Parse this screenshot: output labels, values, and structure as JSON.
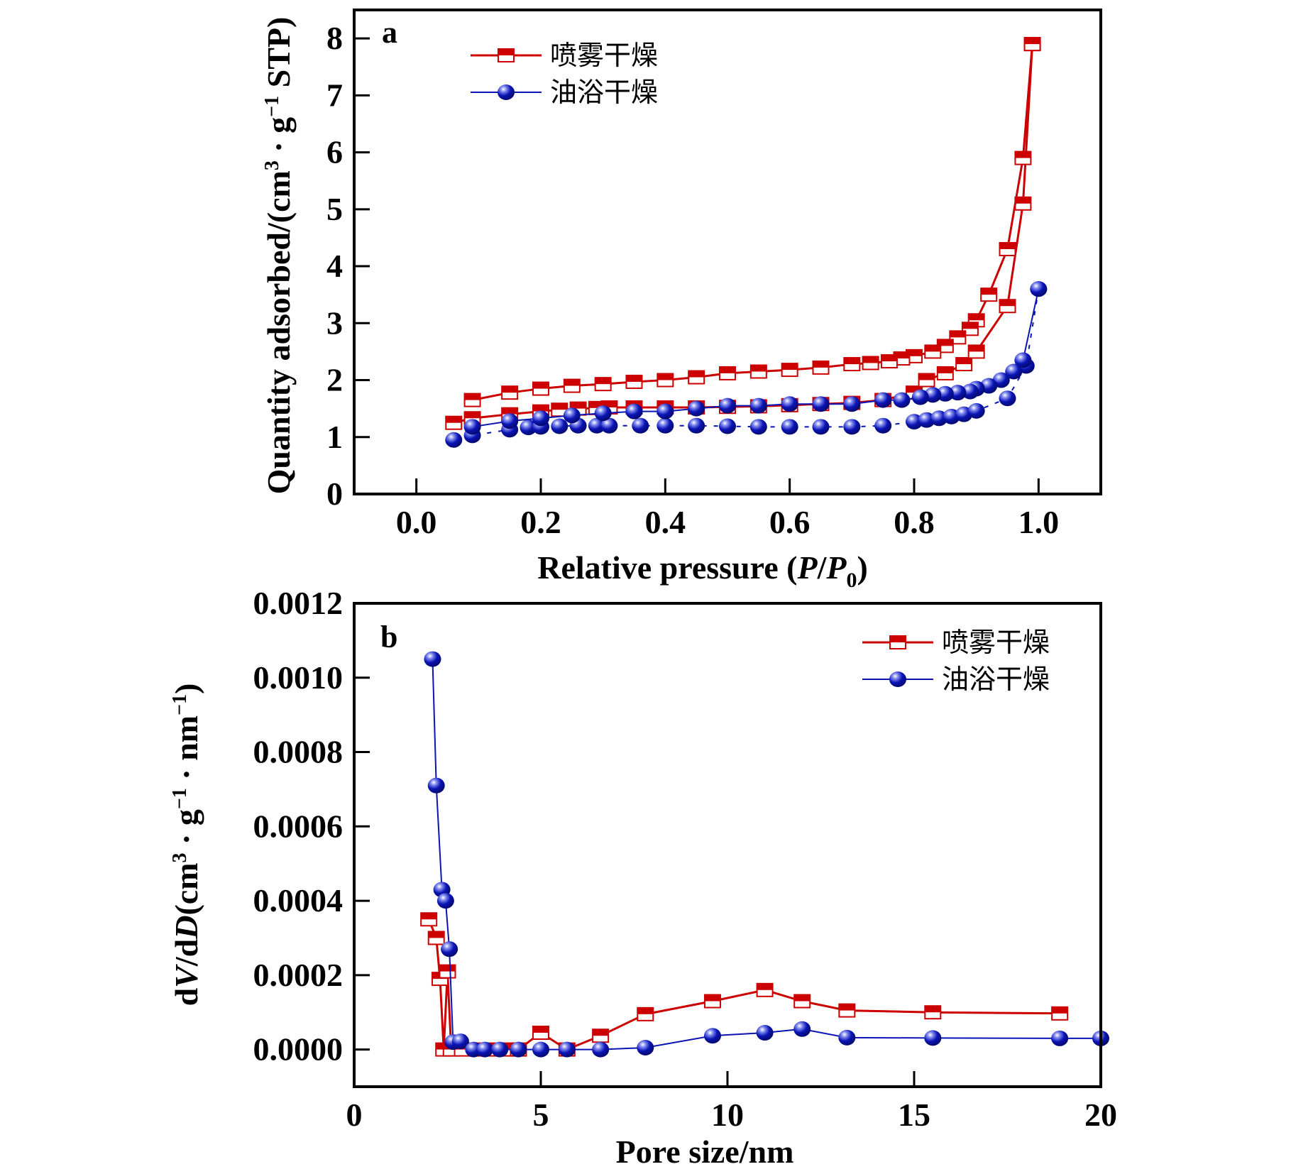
{
  "figure": {
    "legend": [
      {
        "name": "喷雾干燥",
        "color": "#cc0000",
        "marker": "square-half-filled"
      },
      {
        "name": "油浴干燥",
        "color": "#0a14b4",
        "marker": "sphere"
      }
    ]
  },
  "chart_data": [
    {
      "type": "line",
      "panel": "a",
      "title": "",
      "xlabel": "Relative pressure (P/P0)",
      "ylabel": "Quantity adsorbed/(cm3·g-1 STP)",
      "xlim": [
        -0.1,
        1.1
      ],
      "ylim": [
        0,
        8.5
      ],
      "xticks": [
        0.0,
        0.2,
        0.4,
        0.6,
        0.8,
        1.0
      ],
      "xtick_labels": [
        "0.0",
        "0.2",
        "0.4",
        "0.6",
        "0.8",
        "1.0"
      ],
      "yticks": [
        0,
        1,
        2,
        3,
        4,
        5,
        6,
        7,
        8
      ],
      "ytick_labels": [
        "0",
        "1",
        "2",
        "3",
        "4",
        "5",
        "6",
        "7",
        "8"
      ],
      "legend_position": "top-left",
      "grid": false,
      "series": [
        {
          "name": "喷雾干燥",
          "branch": "adsorption",
          "x": [
            0.06,
            0.09,
            0.15,
            0.2,
            0.23,
            0.26,
            0.29,
            0.31,
            0.35,
            0.4,
            0.45,
            0.5,
            0.55,
            0.6,
            0.65,
            0.7,
            0.75,
            0.8,
            0.82,
            0.85,
            0.88,
            0.9,
            0.95,
            0.975,
            0.99
          ],
          "y": [
            1.25,
            1.33,
            1.4,
            1.45,
            1.48,
            1.5,
            1.51,
            1.52,
            1.52,
            1.52,
            1.52,
            1.53,
            1.54,
            1.56,
            1.58,
            1.6,
            1.65,
            1.78,
            2.0,
            2.12,
            2.28,
            2.5,
            3.3,
            5.1,
            7.9
          ]
        },
        {
          "name": "喷雾干燥",
          "branch": "desorption",
          "x": [
            0.99,
            0.975,
            0.95,
            0.92,
            0.9,
            0.89,
            0.87,
            0.85,
            0.83,
            0.8,
            0.78,
            0.76,
            0.73,
            0.7,
            0.65,
            0.6,
            0.55,
            0.5,
            0.45,
            0.4,
            0.35,
            0.3,
            0.25,
            0.2,
            0.15,
            0.09
          ],
          "y": [
            7.9,
            5.9,
            4.3,
            3.5,
            3.05,
            2.9,
            2.75,
            2.6,
            2.5,
            2.42,
            2.38,
            2.33,
            2.3,
            2.28,
            2.22,
            2.18,
            2.15,
            2.12,
            2.05,
            2.0,
            1.97,
            1.93,
            1.9,
            1.85,
            1.78,
            1.65
          ]
        },
        {
          "name": "油浴干燥",
          "branch": "adsorption",
          "x": [
            0.06,
            0.09,
            0.15,
            0.18,
            0.2,
            0.23,
            0.26,
            0.29,
            0.31,
            0.36,
            0.4,
            0.45,
            0.5,
            0.55,
            0.6,
            0.65,
            0.7,
            0.75,
            0.8,
            0.82,
            0.84,
            0.86,
            0.88,
            0.9,
            0.95,
            0.98,
            1.0
          ],
          "y": [
            0.95,
            1.03,
            1.13,
            1.17,
            1.18,
            1.19,
            1.2,
            1.2,
            1.2,
            1.2,
            1.2,
            1.2,
            1.19,
            1.18,
            1.18,
            1.18,
            1.18,
            1.2,
            1.27,
            1.3,
            1.33,
            1.36,
            1.4,
            1.46,
            1.68,
            2.25,
            3.6
          ]
        },
        {
          "name": "油浴干燥",
          "branch": "desorption",
          "x": [
            1.0,
            0.975,
            0.96,
            0.94,
            0.92,
            0.9,
            0.89,
            0.87,
            0.85,
            0.83,
            0.81,
            0.78,
            0.75,
            0.7,
            0.65,
            0.6,
            0.55,
            0.5,
            0.45,
            0.4,
            0.35,
            0.3,
            0.25,
            0.2,
            0.15,
            0.09
          ],
          "y": [
            3.6,
            2.35,
            2.15,
            2.0,
            1.9,
            1.85,
            1.8,
            1.78,
            1.76,
            1.74,
            1.7,
            1.65,
            1.65,
            1.58,
            1.58,
            1.58,
            1.55,
            1.55,
            1.5,
            1.45,
            1.45,
            1.42,
            1.38,
            1.33,
            1.28,
            1.18
          ]
        }
      ]
    },
    {
      "type": "line",
      "panel": "b",
      "title": "",
      "xlabel": "Pore size/nm",
      "ylabel": "dV/dD(cm3·g-1·nm-1)",
      "xlim": [
        0,
        20
      ],
      "ylim": [
        -0.0001,
        0.0012
      ],
      "xticks": [
        0,
        5,
        10,
        15,
        20
      ],
      "xtick_labels": [
        "0",
        "5",
        "10",
        "15",
        "20"
      ],
      "yticks": [
        0.0,
        0.0002,
        0.0004,
        0.0006,
        0.0008,
        0.001,
        0.0012
      ],
      "ytick_labels": [
        "0.0000",
        "0.0002",
        "0.0004",
        "0.0006",
        "0.0008",
        "0.0010",
        "0.0012"
      ],
      "legend_position": "top-right",
      "grid": false,
      "series": [
        {
          "name": "喷雾干燥",
          "x": [
            2.0,
            2.2,
            2.3,
            2.4,
            2.5,
            2.6,
            2.9,
            3.3,
            3.7,
            4.1,
            4.4,
            5.0,
            5.7,
            6.6,
            7.8,
            9.6,
            11.0,
            12.0,
            13.2,
            15.5,
            18.9
          ],
          "y": [
            0.00035,
            0.0003,
            0.00019,
            0.0,
            0.00021,
            0.0,
            0.0,
            0.0,
            0.0,
            0.0,
            0.0,
            4.5e-05,
            0.0,
            3.7e-05,
            9.5e-05,
            0.00013,
            0.00016,
            0.00013,
            0.000105,
            0.0001,
            9.7e-05
          ]
        },
        {
          "name": "油浴干燥",
          "x": [
            2.1,
            2.2,
            2.35,
            2.45,
            2.55,
            2.65,
            2.85,
            3.2,
            3.5,
            3.9,
            4.4,
            5.0,
            5.7,
            6.6,
            7.8,
            9.6,
            11.0,
            12.0,
            13.2,
            15.5,
            18.9,
            20.0
          ],
          "y": [
            0.00105,
            0.00071,
            0.00043,
            0.0004,
            0.00027,
            2e-05,
            2.2e-05,
            0.0,
            0.0,
            0.0,
            0.0,
            0.0,
            0.0,
            0.0,
            5e-06,
            3.7e-05,
            4.5e-05,
            5.5e-05,
            3.2e-05,
            3.1e-05,
            3e-05,
            3e-05
          ]
        }
      ]
    }
  ]
}
